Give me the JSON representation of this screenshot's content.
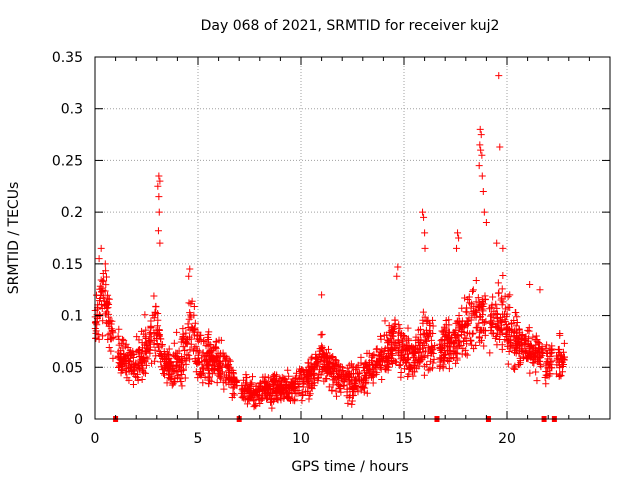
{
  "chart_data": {
    "type": "scatter",
    "title": "Day 068 of 2021, SRMTID for receiver kuj2",
    "xlabel": "GPS time / hours",
    "ylabel": "SRMTID / TECUs",
    "xlim": [
      0,
      25
    ],
    "ylim": [
      0,
      0.35
    ],
    "grid": true,
    "color": "#ff0000",
    "x_ticks": [
      0,
      5,
      10,
      15,
      20
    ],
    "x_tick_labels": [
      "0",
      "5",
      "10",
      "15",
      "20"
    ],
    "y_ticks": [
      0,
      0.05,
      0.1,
      0.15,
      0.2,
      0.25,
      0.3,
      0.35
    ],
    "y_tick_labels": [
      "0",
      "0.05",
      "0.1",
      "0.15",
      "0.2",
      "0.25",
      "0.3",
      "0.35"
    ],
    "marker": "+",
    "trend": [
      {
        "t": 0.0,
        "median": 0.095,
        "spread": 0.035
      },
      {
        "t": 0.4,
        "median": 0.12,
        "spread": 0.04
      },
      {
        "t": 0.8,
        "median": 0.085,
        "spread": 0.035
      },
      {
        "t": 1.2,
        "median": 0.06,
        "spread": 0.025
      },
      {
        "t": 2.0,
        "median": 0.055,
        "spread": 0.025
      },
      {
        "t": 2.6,
        "median": 0.075,
        "spread": 0.035
      },
      {
        "t": 3.0,
        "median": 0.09,
        "spread": 0.04
      },
      {
        "t": 3.4,
        "median": 0.05,
        "spread": 0.03
      },
      {
        "t": 4.2,
        "median": 0.055,
        "spread": 0.035
      },
      {
        "t": 4.6,
        "median": 0.09,
        "spread": 0.04
      },
      {
        "t": 5.2,
        "median": 0.06,
        "spread": 0.035
      },
      {
        "t": 6.0,
        "median": 0.055,
        "spread": 0.03
      },
      {
        "t": 6.8,
        "median": 0.035,
        "spread": 0.02
      },
      {
        "t": 7.6,
        "median": 0.025,
        "spread": 0.015
      },
      {
        "t": 8.5,
        "median": 0.03,
        "spread": 0.02
      },
      {
        "t": 9.5,
        "median": 0.03,
        "spread": 0.02
      },
      {
        "t": 10.5,
        "median": 0.04,
        "spread": 0.025
      },
      {
        "t": 11.0,
        "median": 0.06,
        "spread": 0.03
      },
      {
        "t": 11.5,
        "median": 0.045,
        "spread": 0.025
      },
      {
        "t": 12.5,
        "median": 0.035,
        "spread": 0.025
      },
      {
        "t": 13.3,
        "median": 0.045,
        "spread": 0.025
      },
      {
        "t": 14.0,
        "median": 0.06,
        "spread": 0.03
      },
      {
        "t": 14.6,
        "median": 0.075,
        "spread": 0.035
      },
      {
        "t": 15.4,
        "median": 0.055,
        "spread": 0.03
      },
      {
        "t": 16.0,
        "median": 0.08,
        "spread": 0.045
      },
      {
        "t": 16.6,
        "median": 0.06,
        "spread": 0.03
      },
      {
        "t": 17.4,
        "median": 0.075,
        "spread": 0.035
      },
      {
        "t": 17.9,
        "median": 0.09,
        "spread": 0.04
      },
      {
        "t": 18.6,
        "median": 0.1,
        "spread": 0.05
      },
      {
        "t": 19.2,
        "median": 0.09,
        "spread": 0.045
      },
      {
        "t": 19.8,
        "median": 0.1,
        "spread": 0.045
      },
      {
        "t": 20.4,
        "median": 0.075,
        "spread": 0.035
      },
      {
        "t": 21.0,
        "median": 0.07,
        "spread": 0.03
      },
      {
        "t": 21.6,
        "median": 0.06,
        "spread": 0.03
      },
      {
        "t": 22.3,
        "median": 0.055,
        "spread": 0.025
      },
      {
        "t": 22.8,
        "median": 0.06,
        "spread": 0.025
      }
    ],
    "coverage_segments": [
      [
        0.0,
        0.9
      ],
      [
        1.1,
        6.9
      ],
      [
        7.1,
        16.5
      ],
      [
        16.7,
        19.0
      ],
      [
        19.15,
        21.75
      ],
      [
        21.85,
        22.2
      ],
      [
        22.4,
        22.8
      ]
    ],
    "gap_markers_x": [
      1.0,
      7.0,
      16.6,
      19.1,
      21.8,
      22.3
    ],
    "peaks": [
      {
        "x": 3.1,
        "y": 0.235
      },
      {
        "x": 3.15,
        "y": 0.23
      },
      {
        "x": 3.05,
        "y": 0.225
      },
      {
        "x": 3.1,
        "y": 0.215
      },
      {
        "x": 3.12,
        "y": 0.2
      },
      {
        "x": 3.08,
        "y": 0.182
      },
      {
        "x": 3.15,
        "y": 0.17
      },
      {
        "x": 4.6,
        "y": 0.145
      },
      {
        "x": 4.55,
        "y": 0.138
      },
      {
        "x": 0.3,
        "y": 0.165
      },
      {
        "x": 0.2,
        "y": 0.155
      },
      {
        "x": 0.5,
        "y": 0.15
      },
      {
        "x": 11.0,
        "y": 0.12
      },
      {
        "x": 14.7,
        "y": 0.147
      },
      {
        "x": 14.65,
        "y": 0.138
      },
      {
        "x": 15.9,
        "y": 0.2
      },
      {
        "x": 15.95,
        "y": 0.195
      },
      {
        "x": 16.0,
        "y": 0.18
      },
      {
        "x": 16.02,
        "y": 0.165
      },
      {
        "x": 17.6,
        "y": 0.18
      },
      {
        "x": 17.65,
        "y": 0.175
      },
      {
        "x": 17.55,
        "y": 0.165
      },
      {
        "x": 18.7,
        "y": 0.28
      },
      {
        "x": 18.75,
        "y": 0.275
      },
      {
        "x": 18.68,
        "y": 0.265
      },
      {
        "x": 18.72,
        "y": 0.26
      },
      {
        "x": 18.78,
        "y": 0.255
      },
      {
        "x": 18.65,
        "y": 0.245
      },
      {
        "x": 18.8,
        "y": 0.235
      },
      {
        "x": 18.85,
        "y": 0.22
      },
      {
        "x": 18.9,
        "y": 0.2
      },
      {
        "x": 19.0,
        "y": 0.19
      },
      {
        "x": 19.6,
        "y": 0.332
      },
      {
        "x": 19.65,
        "y": 0.263
      },
      {
        "x": 19.5,
        "y": 0.17
      },
      {
        "x": 19.8,
        "y": 0.165
      },
      {
        "x": 21.1,
        "y": 0.13
      },
      {
        "x": 21.6,
        "y": 0.125
      }
    ]
  }
}
